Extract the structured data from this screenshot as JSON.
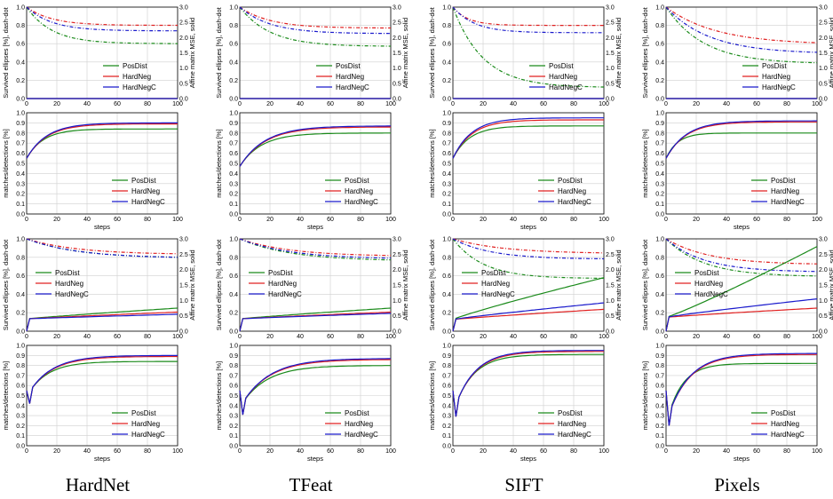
{
  "columns": [
    "HardNet",
    "TFeat",
    "SIFT",
    "Pixels"
  ],
  "colors": {
    "PosDist": "#1a8a1a",
    "HardNeg": "#e02020",
    "HardNegC": "#1a1acc"
  },
  "chart_data": [
    {
      "panel_row": "A",
      "type": "line",
      "xlabel": "",
      "ylabel_left": "Survived ellipses [%], dash-dot",
      "ylabel_right": "Affine matrix MSE, solid",
      "xlim": [
        0,
        100
      ],
      "ylim": [
        0,
        1.0
      ],
      "ylim_right": [
        0,
        3.0
      ],
      "xticks": [
        0,
        20,
        40,
        60,
        80,
        100
      ],
      "yticks": [
        0.0,
        0.2,
        0.4,
        0.6,
        0.8,
        1.0
      ],
      "yticks_right": [
        0.0,
        0.5,
        1.0,
        1.5,
        2.0,
        2.5,
        3.0
      ],
      "grid": true,
      "legend_position": "bottom-right",
      "legend": [
        "PosDist",
        "HardNeg",
        "HardNegC"
      ],
      "styles": {
        "survived": "dashdot",
        "mse": "solid"
      },
      "panels": {
        "HardNet": {
          "survived": {
            "PosDist": {
              "end": 0.6,
              "k": 0.06
            },
            "HardNeg": {
              "end": 0.8,
              "k": 0.06
            },
            "HardNegC": {
              "end": 0.74,
              "k": 0.06
            }
          },
          "mse": {
            "PosDist": {
              "end": 0.0,
              "k": 0.1
            },
            "HardNeg": {
              "end": 0.0,
              "k": 0.1
            },
            "HardNegC": {
              "end": 0.0,
              "k": 0.1
            }
          }
        },
        "TFeat": {
          "survived": {
            "PosDist": {
              "end": 0.57,
              "k": 0.05
            },
            "HardNeg": {
              "end": 0.77,
              "k": 0.05
            },
            "HardNegC": {
              "end": 0.71,
              "k": 0.05
            }
          },
          "mse": {
            "PosDist": {
              "end": 0.0,
              "k": 0.1
            },
            "HardNeg": {
              "end": 0.0,
              "k": 0.1
            },
            "HardNegC": {
              "end": 0.0,
              "k": 0.1
            }
          }
        },
        "SIFT": {
          "survived": {
            "PosDist": {
              "end": 0.12,
              "k": 0.05
            },
            "HardNeg": {
              "end": 0.8,
              "k": 0.1
            },
            "HardNegC": {
              "end": 0.72,
              "k": 0.07
            }
          },
          "mse": {
            "PosDist": {
              "end": 0.0,
              "k": 0.1
            },
            "HardNeg": {
              "end": 0.0,
              "k": 0.1
            },
            "HardNegC": {
              "end": 0.0,
              "k": 0.1
            }
          }
        },
        "Pixels": {
          "survived": {
            "PosDist": {
              "end": 0.38,
              "k": 0.04
            },
            "HardNeg": {
              "end": 0.59,
              "k": 0.03
            },
            "HardNegC": {
              "end": 0.49,
              "k": 0.035
            }
          },
          "mse": {
            "PosDist": {
              "end": 0.0,
              "k": 0.1
            },
            "HardNeg": {
              "end": 0.0,
              "k": 0.1
            },
            "HardNegC": {
              "end": 0.0,
              "k": 0.1
            }
          }
        }
      }
    },
    {
      "panel_row": "B",
      "type": "line",
      "xlabel": "steps",
      "ylabel_left": "matches/detections [%]",
      "xlim": [
        0,
        100
      ],
      "ylim": [
        0,
        1.0
      ],
      "xticks": [
        0,
        20,
        40,
        60,
        80,
        100
      ],
      "yticks": [
        0.0,
        0.1,
        0.2,
        0.3,
        0.4,
        0.5,
        0.6,
        0.7,
        0.8,
        0.9,
        1.0
      ],
      "grid": true,
      "legend_position": "lower-right",
      "legend": [
        "PosDist",
        "HardNeg",
        "HardNegC"
      ],
      "panels": {
        "HardNet": {
          "start": 0.55,
          "lines": {
            "PosDist": {
              "end": 0.84,
              "k": 0.09
            },
            "HardNeg": {
              "end": 0.89,
              "k": 0.075
            },
            "HardNegC": {
              "end": 0.9,
              "k": 0.075
            }
          }
        },
        "TFeat": {
          "start": 0.47,
          "lines": {
            "PosDist": {
              "end": 0.8,
              "k": 0.07
            },
            "HardNeg": {
              "end": 0.86,
              "k": 0.06
            },
            "HardNegC": {
              "end": 0.87,
              "k": 0.06
            }
          }
        },
        "SIFT": {
          "start": 0.55,
          "lines": {
            "PosDist": {
              "end": 0.87,
              "k": 0.09
            },
            "HardNeg": {
              "end": 0.93,
              "k": 0.08
            },
            "HardNegC": {
              "end": 0.95,
              "k": 0.08
            }
          }
        },
        "Pixels": {
          "start": 0.55,
          "lines": {
            "PosDist": {
              "end": 0.8,
              "k": 0.13
            },
            "HardNeg": {
              "end": 0.91,
              "k": 0.075
            },
            "HardNegC": {
              "end": 0.92,
              "k": 0.075
            }
          }
        }
      }
    },
    {
      "panel_row": "C",
      "type": "line",
      "xlabel": "",
      "ylabel_left": "Survived ellipses [%], dash-dot",
      "ylabel_right": "Affine matrix MSE, solid",
      "xlim": [
        0,
        100
      ],
      "ylim": [
        0,
        1.0
      ],
      "ylim_right": [
        0,
        3.0
      ],
      "xticks": [
        0,
        20,
        40,
        60,
        80,
        100
      ],
      "yticks": [
        0.0,
        0.2,
        0.4,
        0.6,
        0.8,
        1.0
      ],
      "yticks_right": [
        0.0,
        0.5,
        1.0,
        1.5,
        2.0,
        2.5,
        3.0
      ],
      "grid": true,
      "legend_position": "center-left",
      "legend": [
        "PosDist",
        "HardNeg",
        "HardNegC"
      ],
      "styles": {
        "survived": "dashdot",
        "mse": "solid"
      },
      "panels": {
        "HardNet": {
          "survived": {
            "PosDist": {
              "end": 0.79,
              "k": 0.03
            },
            "HardNeg": {
              "end": 0.83,
              "k": 0.03
            },
            "HardNegC": {
              "end": 0.79,
              "k": 0.03
            }
          },
          "mse": {
            "PosDist": {
              "start": 0.4,
              "end": 0.75
            },
            "HardNeg": {
              "start": 0.4,
              "end": 0.62
            },
            "HardNegC": {
              "start": 0.4,
              "end": 0.55
            }
          }
        },
        "TFeat": {
          "survived": {
            "PosDist": {
              "end": 0.76,
              "k": 0.03
            },
            "HardNeg": {
              "end": 0.81,
              "k": 0.03
            },
            "HardNegC": {
              "end": 0.78,
              "k": 0.03
            }
          },
          "mse": {
            "PosDist": {
              "start": 0.4,
              "end": 0.75
            },
            "HardNeg": {
              "start": 0.4,
              "end": 0.62
            },
            "HardNegC": {
              "start": 0.4,
              "end": 0.58
            }
          }
        },
        "SIFT": {
          "survived": {
            "PosDist": {
              "end": 0.57,
              "k": 0.05
            },
            "HardNeg": {
              "end": 0.84,
              "k": 0.03
            },
            "HardNegC": {
              "end": 0.78,
              "k": 0.04
            }
          },
          "mse": {
            "PosDist": {
              "start": 0.38,
              "end": 1.74
            },
            "HardNeg": {
              "start": 0.38,
              "end": 0.71
            },
            "HardNegC": {
              "start": 0.38,
              "end": 0.92
            }
          }
        },
        "Pixels": {
          "survived": {
            "PosDist": {
              "end": 0.59,
              "k": 0.04
            },
            "HardNeg": {
              "end": 0.72,
              "k": 0.035
            },
            "HardNegC": {
              "end": 0.64,
              "k": 0.04
            }
          },
          "mse": {
            "PosDist": {
              "start": 0.45,
              "end": 2.75
            },
            "HardNeg": {
              "start": 0.45,
              "end": 0.75
            },
            "HardNegC": {
              "start": 0.45,
              "end": 1.05
            }
          }
        }
      }
    },
    {
      "panel_row": "D",
      "type": "line",
      "xlabel": "steps",
      "ylabel_left": "matches/detections [%]",
      "xlim": [
        0,
        100
      ],
      "ylim": [
        0,
        1.0
      ],
      "xticks": [
        0,
        20,
        40,
        60,
        80,
        100
      ],
      "yticks": [
        0.0,
        0.1,
        0.2,
        0.3,
        0.4,
        0.5,
        0.6,
        0.7,
        0.8,
        0.9,
        1.0
      ],
      "grid": true,
      "legend_position": "lower-right",
      "legend": [
        "PosDist",
        "HardNeg",
        "HardNegC"
      ],
      "panels": {
        "HardNet": {
          "dip": 0.42,
          "lines": {
            "PosDist": {
              "end": 0.84,
              "k": 0.075
            },
            "HardNeg": {
              "end": 0.89,
              "k": 0.065
            },
            "HardNegC": {
              "end": 0.9,
              "k": 0.065
            }
          }
        },
        "TFeat": {
          "dip": 0.31,
          "lines": {
            "PosDist": {
              "end": 0.8,
              "k": 0.06
            },
            "HardNeg": {
              "end": 0.86,
              "k": 0.055
            },
            "HardNegC": {
              "end": 0.87,
              "k": 0.055
            }
          }
        },
        "SIFT": {
          "dip": 0.29,
          "lines": {
            "PosDist": {
              "end": 0.91,
              "k": 0.08
            },
            "HardNeg": {
              "end": 0.94,
              "k": 0.075
            },
            "HardNegC": {
              "end": 0.95,
              "k": 0.075
            }
          }
        },
        "Pixels": {
          "dip": 0.2,
          "lines": {
            "PosDist": {
              "end": 0.82,
              "k": 0.1
            },
            "HardNeg": {
              "end": 0.91,
              "k": 0.07
            },
            "HardNegC": {
              "end": 0.92,
              "k": 0.07
            }
          }
        }
      }
    }
  ]
}
